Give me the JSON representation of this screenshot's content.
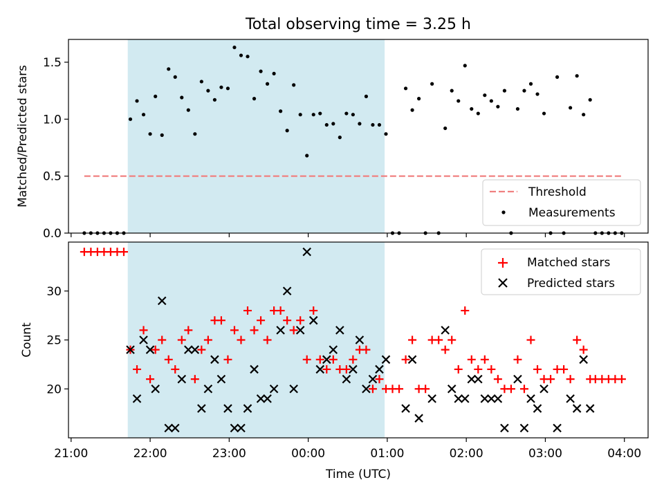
{
  "chart_data": [
    {
      "type": "scatter",
      "title": "Total observing time = 3.25 h",
      "xlabel": "",
      "ylabel": "Matched/Predicted stars",
      "ylim": [
        0,
        1.7
      ],
      "yticks": [
        "0.0",
        "0.5",
        "1.0",
        "1.5"
      ],
      "highlight_span": [
        "21:43",
        "00:58"
      ],
      "legend_position": "lower-right",
      "threshold": {
        "name": "Threshold",
        "value": 0.5,
        "x_range": [
          "21:10",
          "03:58"
        ],
        "color": "#f08080"
      },
      "series": [
        {
          "name": "Measurements",
          "color": "#000000",
          "points": [
            [
              "21:10",
              0
            ],
            [
              "21:15",
              0
            ],
            [
              "21:20",
              0
            ],
            [
              "21:25",
              0
            ],
            [
              "21:30",
              0
            ],
            [
              "21:35",
              0
            ],
            [
              "21:40",
              0
            ],
            [
              "21:45",
              1.0
            ],
            [
              "21:50",
              1.16
            ],
            [
              "21:55",
              1.04
            ],
            [
              "22:00",
              0.87
            ],
            [
              "22:04",
              1.2
            ],
            [
              "22:09",
              0.86
            ],
            [
              "22:14",
              1.44
            ],
            [
              "22:19",
              1.37
            ],
            [
              "22:24",
              1.19
            ],
            [
              "22:29",
              1.08
            ],
            [
              "22:34",
              0.87
            ],
            [
              "22:39",
              1.33
            ],
            [
              "22:44",
              1.25
            ],
            [
              "22:49",
              1.17
            ],
            [
              "22:54",
              1.28
            ],
            [
              "22:59",
              1.27
            ],
            [
              "23:04",
              1.63
            ],
            [
              "23:09",
              1.56
            ],
            [
              "23:14",
              1.55
            ],
            [
              "23:19",
              1.18
            ],
            [
              "23:24",
              1.42
            ],
            [
              "23:29",
              1.31
            ],
            [
              "23:34",
              1.4
            ],
            [
              "23:39",
              1.07
            ],
            [
              "23:44",
              0.9
            ],
            [
              "23:49",
              1.3
            ],
            [
              "23:54",
              1.04
            ],
            [
              "23:59",
              0.68
            ],
            [
              "00:04",
              1.04
            ],
            [
              "00:09",
              1.05
            ],
            [
              "00:14",
              0.95
            ],
            [
              "00:19",
              0.96
            ],
            [
              "00:24",
              0.84
            ],
            [
              "00:29",
              1.05
            ],
            [
              "00:34",
              1.04
            ],
            [
              "00:39",
              0.96
            ],
            [
              "00:44",
              1.2
            ],
            [
              "00:49",
              0.95
            ],
            [
              "00:54",
              0.95
            ],
            [
              "00:59",
              0.87
            ],
            [
              "01:04",
              0
            ],
            [
              "01:09",
              0
            ],
            [
              "01:14",
              1.27
            ],
            [
              "01:19",
              1.08
            ],
            [
              "01:24",
              1.18
            ],
            [
              "01:29",
              0
            ],
            [
              "01:34",
              1.31
            ],
            [
              "01:39",
              0
            ],
            [
              "01:44",
              0.92
            ],
            [
              "01:49",
              1.25
            ],
            [
              "01:54",
              1.16
            ],
            [
              "01:59",
              1.47
            ],
            [
              "02:04",
              1.09
            ],
            [
              "02:09",
              1.05
            ],
            [
              "02:14",
              1.21
            ],
            [
              "02:19",
              1.16
            ],
            [
              "02:24",
              1.11
            ],
            [
              "02:29",
              1.25
            ],
            [
              "02:34",
              0
            ],
            [
              "02:39",
              1.09
            ],
            [
              "02:44",
              1.25
            ],
            [
              "02:49",
              1.31
            ],
            [
              "02:54",
              1.22
            ],
            [
              "02:59",
              1.05
            ],
            [
              "03:04",
              0
            ],
            [
              "03:09",
              1.37
            ],
            [
              "03:14",
              0
            ],
            [
              "03:19",
              1.1
            ],
            [
              "03:24",
              1.38
            ],
            [
              "03:29",
              1.04
            ],
            [
              "03:34",
              1.17
            ],
            [
              "03:38",
              0
            ],
            [
              "03:43",
              0
            ],
            [
              "03:48",
              0
            ],
            [
              "03:53",
              0
            ],
            [
              "03:58",
              0
            ]
          ]
        }
      ]
    },
    {
      "type": "scatter",
      "title": "",
      "xlabel": "Time (UTC)",
      "ylabel": "Count",
      "ylim": [
        15,
        35
      ],
      "xlim": [
        "20:58",
        "04:18"
      ],
      "xticks": [
        "21:00",
        "22:00",
        "23:00",
        "00:00",
        "01:00",
        "02:00",
        "03:00",
        "04:00"
      ],
      "yticks": [
        "20",
        "25",
        "30"
      ],
      "highlight_span": [
        "21:43",
        "00:58"
      ],
      "legend_position": "upper-right",
      "series": [
        {
          "name": "Matched stars",
          "marker": "plus",
          "color": "#ff0000",
          "points": [
            [
              "21:10",
              34
            ],
            [
              "21:15",
              34
            ],
            [
              "21:20",
              34
            ],
            [
              "21:25",
              34
            ],
            [
              "21:30",
              34
            ],
            [
              "21:35",
              34
            ],
            [
              "21:40",
              34
            ],
            [
              "21:45",
              24
            ],
            [
              "21:50",
              22
            ],
            [
              "21:55",
              26
            ],
            [
              "22:00",
              21
            ],
            [
              "22:04",
              24
            ],
            [
              "22:09",
              25
            ],
            [
              "22:14",
              23
            ],
            [
              "22:19",
              22
            ],
            [
              "22:24",
              25
            ],
            [
              "22:29",
              26
            ],
            [
              "22:34",
              21
            ],
            [
              "22:39",
              24
            ],
            [
              "22:44",
              25
            ],
            [
              "22:49",
              27
            ],
            [
              "22:54",
              27
            ],
            [
              "22:59",
              23
            ],
            [
              "23:04",
              26
            ],
            [
              "23:09",
              25
            ],
            [
              "23:14",
              28
            ],
            [
              "23:19",
              26
            ],
            [
              "23:24",
              27
            ],
            [
              "23:29",
              25
            ],
            [
              "23:34",
              28
            ],
            [
              "23:39",
              28
            ],
            [
              "23:44",
              27
            ],
            [
              "23:49",
              26
            ],
            [
              "23:54",
              27
            ],
            [
              "23:59",
              23
            ],
            [
              "00:04",
              28
            ],
            [
              "00:09",
              23
            ],
            [
              "00:14",
              22
            ],
            [
              "00:19",
              23
            ],
            [
              "00:24",
              22
            ],
            [
              "00:29",
              22
            ],
            [
              "00:34",
              23
            ],
            [
              "00:39",
              24
            ],
            [
              "00:44",
              24
            ],
            [
              "00:49",
              20
            ],
            [
              "00:54",
              21
            ],
            [
              "00:59",
              20
            ],
            [
              "01:04",
              20
            ],
            [
              "01:09",
              20
            ],
            [
              "01:14",
              23
            ],
            [
              "01:19",
              25
            ],
            [
              "01:24",
              20
            ],
            [
              "01:29",
              20
            ],
            [
              "01:34",
              25
            ],
            [
              "01:39",
              25
            ],
            [
              "01:44",
              24
            ],
            [
              "01:49",
              25
            ],
            [
              "01:54",
              22
            ],
            [
              "01:59",
              28
            ],
            [
              "02:04",
              23
            ],
            [
              "02:09",
              22
            ],
            [
              "02:14",
              23
            ],
            [
              "02:19",
              22
            ],
            [
              "02:24",
              21
            ],
            [
              "02:29",
              20
            ],
            [
              "02:34",
              20
            ],
            [
              "02:39",
              23
            ],
            [
              "02:44",
              20
            ],
            [
              "02:49",
              25
            ],
            [
              "02:54",
              22
            ],
            [
              "02:59",
              21
            ],
            [
              "03:04",
              21
            ],
            [
              "03:09",
              22
            ],
            [
              "03:14",
              22
            ],
            [
              "03:19",
              21
            ],
            [
              "03:24",
              25
            ],
            [
              "03:29",
              24
            ],
            [
              "03:34",
              21
            ],
            [
              "03:38",
              21
            ],
            [
              "03:43",
              21
            ],
            [
              "03:48",
              21
            ],
            [
              "03:53",
              21
            ],
            [
              "03:58",
              21
            ]
          ]
        },
        {
          "name": "Predicted stars",
          "marker": "x",
          "color": "#000000",
          "points": [
            [
              "21:45",
              24
            ],
            [
              "21:50",
              19
            ],
            [
              "21:55",
              25
            ],
            [
              "22:00",
              24
            ],
            [
              "22:04",
              20
            ],
            [
              "22:09",
              29
            ],
            [
              "22:14",
              16
            ],
            [
              "22:19",
              16
            ],
            [
              "22:24",
              21
            ],
            [
              "22:29",
              24
            ],
            [
              "22:34",
              24
            ],
            [
              "22:39",
              18
            ],
            [
              "22:44",
              20
            ],
            [
              "22:49",
              23
            ],
            [
              "22:54",
              21
            ],
            [
              "22:59",
              18
            ],
            [
              "23:04",
              16
            ],
            [
              "23:09",
              16
            ],
            [
              "23:14",
              18
            ],
            [
              "23:19",
              22
            ],
            [
              "23:24",
              19
            ],
            [
              "23:29",
              19
            ],
            [
              "23:34",
              20
            ],
            [
              "23:39",
              26
            ],
            [
              "23:44",
              30
            ],
            [
              "23:49",
              20
            ],
            [
              "23:54",
              26
            ],
            [
              "23:59",
              34
            ],
            [
              "00:04",
              27
            ],
            [
              "00:09",
              22
            ],
            [
              "00:14",
              23
            ],
            [
              "00:19",
              24
            ],
            [
              "00:24",
              26
            ],
            [
              "00:29",
              21
            ],
            [
              "00:34",
              22
            ],
            [
              "00:39",
              25
            ],
            [
              "00:44",
              20
            ],
            [
              "00:49",
              21
            ],
            [
              "00:54",
              22
            ],
            [
              "00:59",
              23
            ],
            [
              "01:14",
              18
            ],
            [
              "01:19",
              23
            ],
            [
              "01:24",
              17
            ],
            [
              "01:34",
              19
            ],
            [
              "01:44",
              26
            ],
            [
              "01:49",
              20
            ],
            [
              "01:54",
              19
            ],
            [
              "01:59",
              19
            ],
            [
              "02:04",
              21
            ],
            [
              "02:09",
              21
            ],
            [
              "02:14",
              19
            ],
            [
              "02:19",
              19
            ],
            [
              "02:24",
              19
            ],
            [
              "02:29",
              16
            ],
            [
              "02:39",
              21
            ],
            [
              "02:44",
              16
            ],
            [
              "02:49",
              19
            ],
            [
              "02:54",
              18
            ],
            [
              "02:59",
              20
            ],
            [
              "03:09",
              16
            ],
            [
              "03:19",
              19
            ],
            [
              "03:24",
              18
            ],
            [
              "03:29",
              23
            ],
            [
              "03:34",
              18
            ]
          ]
        }
      ]
    }
  ]
}
